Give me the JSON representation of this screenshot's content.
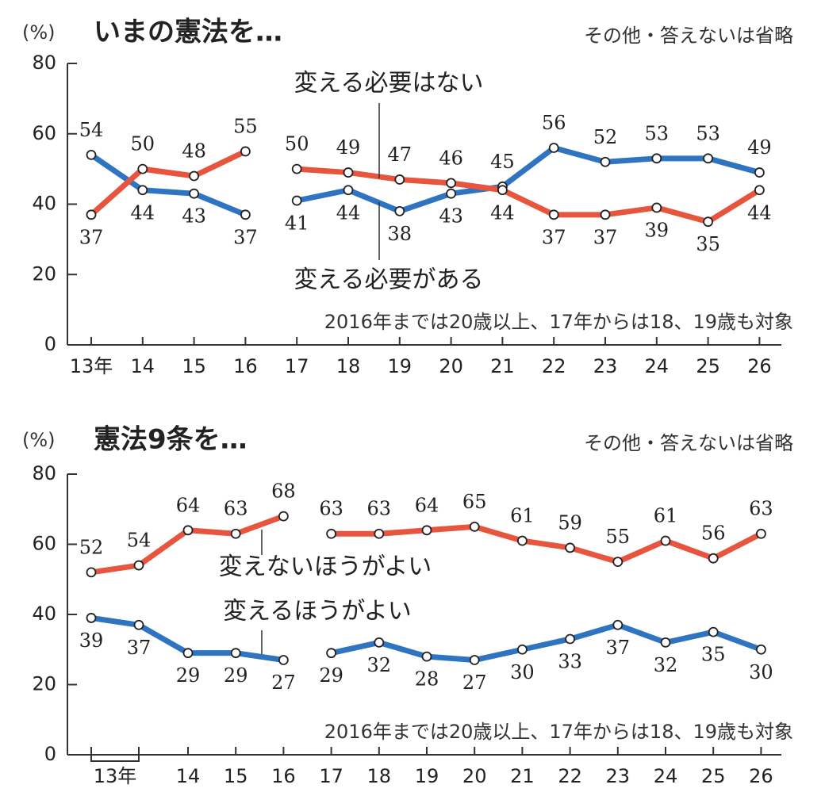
{
  "chart_data": [
    {
      "type": "line",
      "title": "いまの憲法を…",
      "unit_label": "(%)",
      "note": "その他・答えないは省略",
      "footnote": "2016年までは20歳以上、17年からは18、19歳も対象",
      "categories": [
        "13年",
        "14",
        "15",
        "16",
        "17",
        "18",
        "19",
        "20",
        "21",
        "22",
        "23",
        "24",
        "25",
        "26"
      ],
      "line_breaks": [
        3
      ],
      "series": [
        {
          "name": "変える必要がある",
          "color": "#2f74c0",
          "values": [
            54,
            44,
            43,
            37,
            41,
            44,
            38,
            43,
            45,
            56,
            52,
            53,
            53,
            49
          ]
        },
        {
          "name": "変える必要はない",
          "color": "#e8553f",
          "values": [
            37,
            50,
            48,
            55,
            50,
            49,
            47,
            46,
            44,
            37,
            37,
            39,
            35,
            44
          ]
        }
      ],
      "ylim": [
        0,
        80
      ],
      "yticks": [
        0,
        20,
        40,
        60,
        80
      ]
    },
    {
      "type": "line",
      "title": "憲法9条を…",
      "unit_label": "(%)",
      "note": "その他・答えないは省略",
      "footnote": "2016年までは20歳以上、17年からは18、19歳も対象",
      "categories": [
        null,
        null,
        "14",
        "15",
        "16",
        "17",
        "18",
        "19",
        "20",
        "21",
        "22",
        "23",
        "24",
        "25",
        "26"
      ],
      "group_label": "13年",
      "line_breaks": [
        4
      ],
      "series": [
        {
          "name": "変えるほうがよい",
          "color": "#2f74c0",
          "values": [
            39,
            37,
            29,
            29,
            27,
            29,
            32,
            28,
            27,
            30,
            33,
            37,
            32,
            35,
            30
          ]
        },
        {
          "name": "変えないほうがよい",
          "color": "#e8553f",
          "values": [
            52,
            54,
            64,
            63,
            68,
            63,
            63,
            64,
            65,
            61,
            59,
            55,
            61,
            56,
            63
          ]
        }
      ],
      "ylim": [
        0,
        80
      ],
      "yticks": [
        0,
        20,
        40,
        60,
        80
      ]
    }
  ]
}
